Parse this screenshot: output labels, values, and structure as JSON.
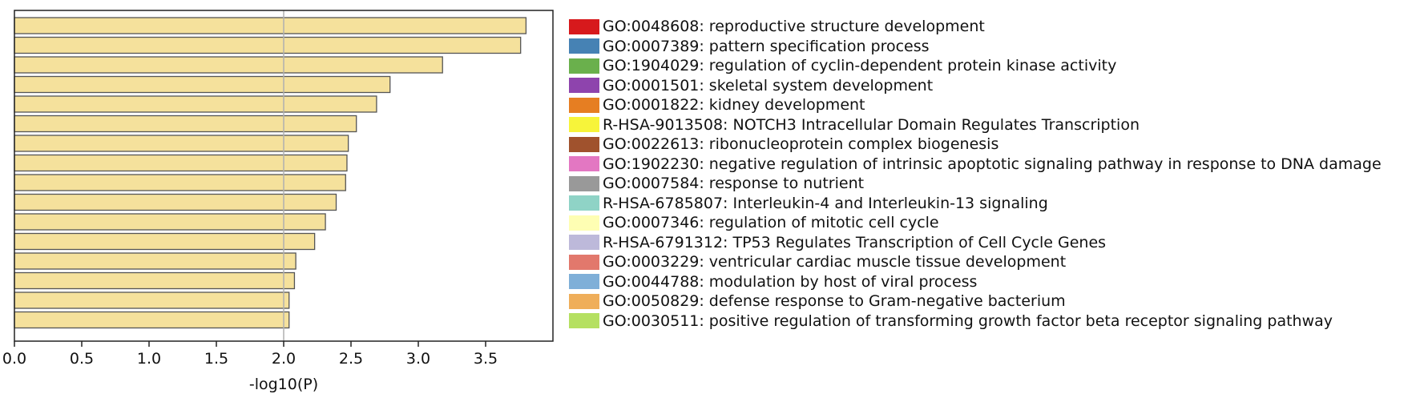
{
  "chart_data": {
    "type": "bar",
    "orientation": "horizontal",
    "xlabel": "-log10(P)",
    "xlim": [
      0,
      4.0
    ],
    "xticks": [
      "0.0",
      "0.5",
      "1.0",
      "1.5",
      "2.0",
      "2.5",
      "3.0",
      "3.5"
    ],
    "reference_line": 2.0,
    "bar_color": "#f5e19c",
    "bar_edge_color": "#555555",
    "legend_position": "right",
    "categories": [
      "GO:0048608: reproductive structure development",
      "GO:0007389: pattern specification process",
      "GO:1904029: regulation of cyclin-dependent protein kinase activity",
      "GO:0001501: skeletal system development",
      "GO:0001822: kidney development",
      "R-HSA-9013508: NOTCH3 Intracellular Domain Regulates Transcription",
      "GO:0022613: ribonucleoprotein complex biogenesis",
      "GO:1902230: negative regulation of intrinsic apoptotic signaling pathway in response to DNA damage",
      "GO:0007584: response to nutrient",
      "R-HSA-6785807: Interleukin-4 and Interleukin-13 signaling",
      "GO:0007346: regulation of mitotic cell cycle",
      "R-HSA-6791312: TP53 Regulates Transcription of Cell Cycle Genes",
      "GO:0003229: ventricular cardiac muscle tissue development",
      "GO:0044788: modulation by host of viral process",
      "GO:0050829: defense response to Gram-negative bacterium",
      "GO:0030511: positive regulation of transforming growth factor beta receptor signaling pathway"
    ],
    "values": [
      3.8,
      3.76,
      3.18,
      2.79,
      2.69,
      2.54,
      2.48,
      2.47,
      2.46,
      2.39,
      2.31,
      2.23,
      2.09,
      2.08,
      2.04,
      2.04
    ],
    "legend_colors": [
      "#d7191c",
      "#4682b4",
      "#6ab04c",
      "#8e44ad",
      "#e67e22",
      "#f7f43a",
      "#a0522d",
      "#e377c2",
      "#999999",
      "#8fd3c6",
      "#fefeb3",
      "#bdb9da",
      "#e2786c",
      "#7fafd8",
      "#efae5a",
      "#b5e061"
    ]
  }
}
